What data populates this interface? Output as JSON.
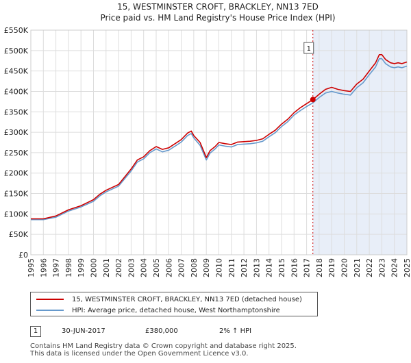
{
  "chart_data": {
    "type": "line",
    "title": "15, WESTMINSTER CROFT, BRACKLEY, NN13 7ED",
    "subtitle": "Price paid vs. HM Land Registry's House Price Index (HPI)",
    "xlim": [
      1995,
      2025
    ],
    "ylim": [
      0,
      550000
    ],
    "y_ticks": [
      0,
      50000,
      100000,
      150000,
      200000,
      250000,
      300000,
      350000,
      400000,
      450000,
      500000,
      550000
    ],
    "y_tick_labels": [
      "£0",
      "£50K",
      "£100K",
      "£150K",
      "£200K",
      "£250K",
      "£300K",
      "£350K",
      "£400K",
      "£450K",
      "£500K",
      "£550K"
    ],
    "x_ticks": [
      1995,
      1996,
      1997,
      1998,
      1999,
      2000,
      2001,
      2002,
      2003,
      2004,
      2005,
      2006,
      2007,
      2008,
      2009,
      2010,
      2011,
      2012,
      2013,
      2014,
      2015,
      2016,
      2017,
      2018,
      2019,
      2020,
      2021,
      2022,
      2023,
      2024,
      2025
    ],
    "x_tick_labels": [
      "1995",
      "1996",
      "1997",
      "1998",
      "1999",
      "2000",
      "2001",
      "2002",
      "2003",
      "2004",
      "2005",
      "2006",
      "2007",
      "2008",
      "2009",
      "2010",
      "2011",
      "2012",
      "2013",
      "2014",
      "2015",
      "2016",
      "2017",
      "2018",
      "2019",
      "2020",
      "2021",
      "2022",
      "2023",
      "2024",
      "2025"
    ],
    "grid": true,
    "shaded_region": {
      "from": 2017.5,
      "to": 2025
    },
    "sale_marker": {
      "x": 2017.5,
      "y": 380000,
      "label": "1"
    },
    "series": [
      {
        "name": "15, WESTMINSTER CROFT, BRACKLEY, NN13 7ED (detached house)",
        "color": "#cc0000",
        "x": [
          1995,
          1996,
          1997,
          1998,
          1999,
          2000,
          2000.5,
          2001,
          2002,
          2003,
          2003.5,
          2004,
          2004.5,
          2005,
          2005.5,
          2006,
          2006.5,
          2007,
          2007.5,
          2007.8,
          2008,
          2008.5,
          2009,
          2009.3,
          2009.7,
          2010,
          2010.5,
          2011,
          2011.5,
          2012,
          2012.5,
          2013,
          2013.5,
          2014,
          2014.5,
          2015,
          2015.5,
          2016,
          2016.5,
          2017,
          2017.5,
          2018,
          2018.5,
          2019,
          2019.5,
          2020,
          2020.5,
          2021,
          2021.5,
          2022,
          2022.5,
          2022.8,
          2023,
          2023.3,
          2023.7,
          2024,
          2024.3,
          2024.6,
          2025
        ],
        "values": [
          88000,
          88000,
          95000,
          110000,
          120000,
          135000,
          148000,
          158000,
          172000,
          210000,
          232000,
          240000,
          255000,
          265000,
          258000,
          262000,
          272000,
          282000,
          298000,
          303000,
          292000,
          275000,
          238000,
          255000,
          265000,
          275000,
          272000,
          270000,
          276000,
          277000,
          278000,
          280000,
          284000,
          295000,
          305000,
          320000,
          332000,
          348000,
          360000,
          370000,
          380000,
          393000,
          405000,
          410000,
          405000,
          402000,
          400000,
          418000,
          430000,
          450000,
          470000,
          490000,
          490000,
          478000,
          470000,
          468000,
          470000,
          468000,
          472000
        ]
      },
      {
        "name": "HPI: Average price, detached house, West Northamptonshire",
        "color": "#6699cc",
        "x": [
          1995,
          1996,
          1997,
          1998,
          1999,
          2000,
          2000.5,
          2001,
          2002,
          2003,
          2003.5,
          2004,
          2004.5,
          2005,
          2005.5,
          2006,
          2006.5,
          2007,
          2007.5,
          2007.8,
          2008,
          2008.5,
          2009,
          2009.3,
          2009.7,
          2010,
          2010.5,
          2011,
          2011.5,
          2012,
          2012.5,
          2013,
          2013.5,
          2014,
          2014.5,
          2015,
          2015.5,
          2016,
          2016.5,
          2017,
          2017.5,
          2018,
          2018.5,
          2019,
          2019.5,
          2020,
          2020.5,
          2021,
          2021.5,
          2022,
          2022.5,
          2022.8,
          2023,
          2023.3,
          2023.7,
          2024,
          2024.3,
          2024.6,
          2025
        ],
        "values": [
          86000,
          86000,
          92000,
          107000,
          117000,
          131000,
          144000,
          154000,
          168000,
          205000,
          227000,
          235000,
          250000,
          259000,
          252000,
          256000,
          266000,
          276000,
          292000,
          297000,
          286000,
          268000,
          232000,
          249000,
          259000,
          269000,
          266000,
          264000,
          270000,
          271000,
          272000,
          274000,
          278000,
          289000,
          299000,
          314000,
          326000,
          342000,
          353000,
          363000,
          372000,
          385000,
          396000,
          400000,
          396000,
          393000,
          391000,
          409000,
          421000,
          441000,
          460000,
          480000,
          480000,
          468000,
          460000,
          458000,
          460000,
          458000,
          462000
        ]
      }
    ]
  },
  "legend": {
    "items": [
      {
        "label": "15, WESTMINSTER CROFT, BRACKLEY, NN13 7ED (detached house)",
        "color": "#cc0000"
      },
      {
        "label": "HPI: Average price, detached house, West Northamptonshire",
        "color": "#6699cc"
      }
    ]
  },
  "transaction": {
    "badge": "1",
    "date": "30-JUN-2017",
    "price": "£380,000",
    "hpi_change": "2% ↑ HPI"
  },
  "footer": {
    "line1": "Contains HM Land Registry data © Crown copyright and database right 2025.",
    "line2": "This data is licensed under the Open Government Licence v3.0."
  }
}
